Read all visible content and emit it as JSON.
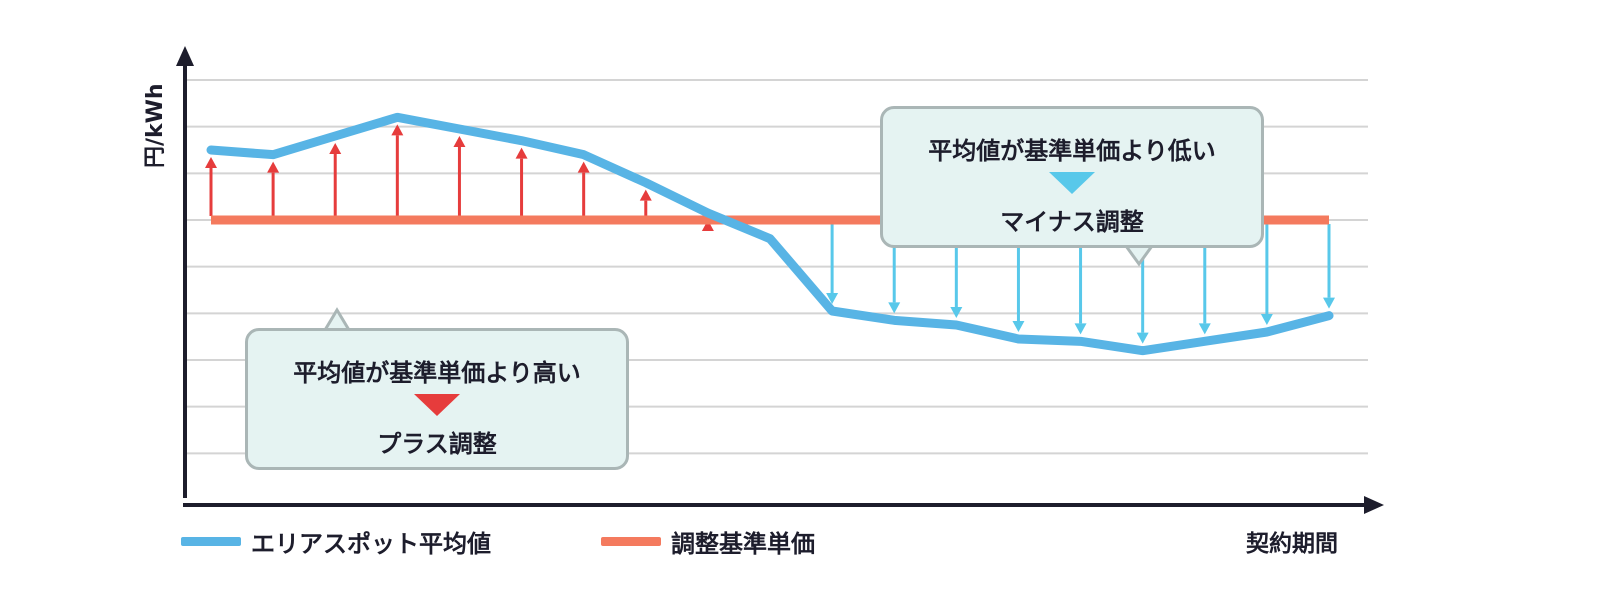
{
  "chart_data": {
    "type": "line",
    "ylabel": "円/kWh",
    "xlabel": "契約期間",
    "grid": true,
    "series": [
      {
        "name": "エリアスポット平均値",
        "color": "#58b4e5",
        "values": [
          4.5,
          4.4,
          4.8,
          5.2,
          4.95,
          4.7,
          4.4,
          3.8,
          3.15,
          2.6,
          1.05,
          0.85,
          0.75,
          0.45,
          0.4,
          0.2,
          0.4,
          0.6,
          0.95
        ]
      },
      {
        "name": "調整基準単価",
        "color": "#f47a5e",
        "values": [
          3.0,
          3.0,
          3.0,
          3.0,
          3.0,
          3.0,
          3.0,
          3.0,
          3.0,
          3.0,
          3.0,
          3.0,
          3.0,
          3.0,
          3.0,
          3.0,
          3.0,
          3.0,
          3.0
        ]
      }
    ],
    "plus_arrow_indices": [
      0,
      1,
      2,
      3,
      4,
      5,
      6,
      7,
      8
    ],
    "minus_arrow_indices": [
      10,
      11,
      12,
      13,
      14,
      15,
      16,
      17,
      18
    ],
    "plus_arrow_color": "#e63c3c",
    "minus_arrow_color": "#58c8ea",
    "ylim": [
      -3,
      6
    ]
  },
  "callouts": {
    "high": {
      "title": "平均値が基準単価より高い",
      "result": "プラス調整",
      "marker_color": "#e63c3c"
    },
    "low": {
      "title": "平均値が基準単価より低い",
      "result": "マイナス調整",
      "marker_color": "#58c8ea"
    }
  },
  "legend": {
    "spot": "エリアスポット平均値",
    "base": "調整基準単価"
  }
}
